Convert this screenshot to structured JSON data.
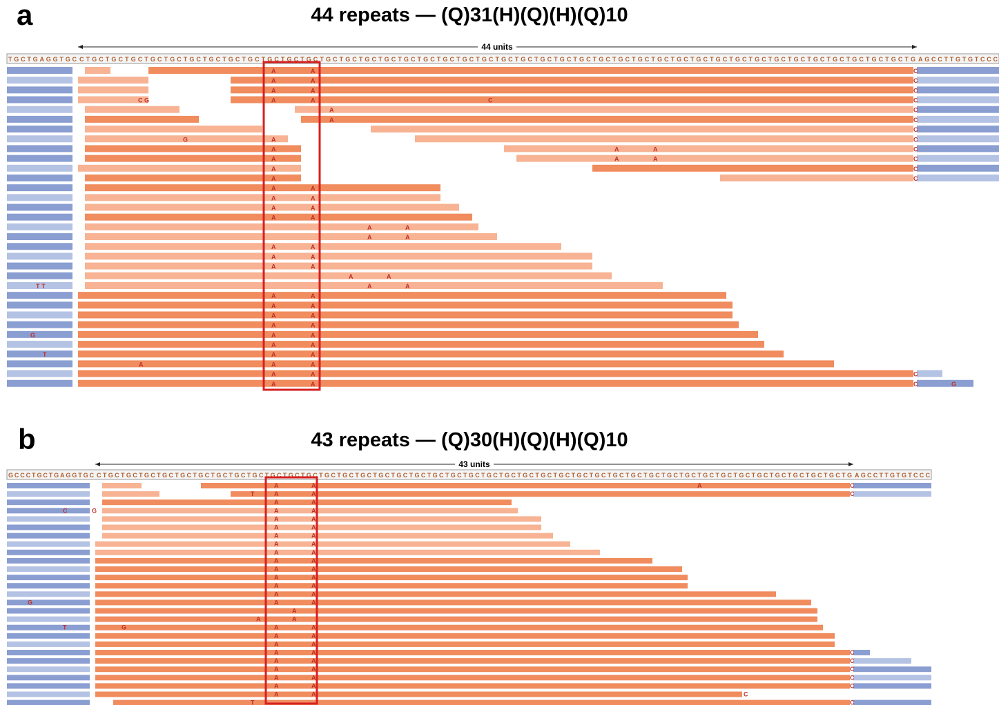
{
  "panels": [
    {
      "label": "a",
      "title": "44 repeats — (Q)31(H)(Q)(H)(Q)10",
      "span_label": "44 units",
      "reference_left": "TGCTGAGGTGC",
      "reference_repeat": "CTGCTGCTGCTGCTGCTGCTGCTGCTGCTGCTGCTGCTGCTGCTGCTGCTGCTGCTGCTGCTGCTGCTGCTGCTGCTGCTGCTGCTGCTGCTGCTGCTGCTGCTGCTGCTGCTGCTGCTGCTGCTGCTG",
      "reference_right": "AGCCTTGTGTCCC",
      "reads": [
        "AAC",
        "AAC",
        "AAC",
        "CGAACC",
        "AC",
        "AC",
        "C",
        "GAC",
        "AAAC",
        "AAAC",
        "AC",
        "AC",
        "AA",
        "AA",
        "AA",
        "AA",
        "AA",
        "AA",
        "AA",
        "AA",
        "AA",
        "AA",
        "TTAA",
        "AA",
        "AA",
        "AA",
        "AA",
        "GAA",
        "AA",
        "TAA",
        "AAA",
        "AAC",
        "AACG"
      ]
    },
    {
      "label": "b",
      "title": "43 repeats — (Q)30(H)(Q)(H)(Q)10",
      "span_label": "43 units",
      "reference_left": "GCCCTGCTGAGGTGC",
      "reference_repeat": "CTGCTGCTGCTGCTGCTGCTGCTGCTGCTGCTGCTGCTGCTGCTGCTGCTGCTGCTGCTGCTGCTGCTGCTGCTGCTGCTGCTGCTGCTGCTGCTGCTGCTGCTGCTGCTGCTGCTGCTGCTGCTG",
      "reference_right": "AGCCTTGTGTCCC",
      "reads": [
        "AAAC",
        "TAAC",
        "AA",
        "CGAA",
        "AA",
        "AA",
        "AA",
        "AA",
        "AA",
        "AA",
        "AA",
        "AA",
        "AA",
        "AA",
        "GAA",
        "A",
        "AA",
        "TGAA",
        "AA",
        "AA",
        "AAC",
        "AAC",
        "AAC",
        "AAC",
        "AAC",
        "AAC",
        "TC"
      ]
    }
  ]
}
